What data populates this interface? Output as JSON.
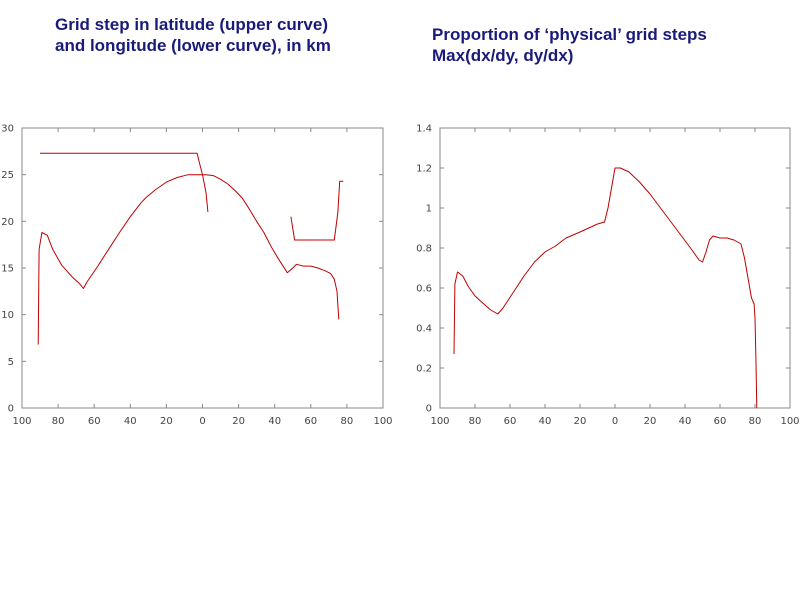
{
  "captions": {
    "left": {
      "line1": "Grid step in latitude (upper curve)",
      "line2": "and longitude (lower curve), in km"
    },
    "right": {
      "line1": "Proportion of ‘physical’ grid steps",
      "line2": "Max(dx/dy, dy/dx)"
    }
  },
  "colors": {
    "series": "#c00000",
    "frame": "#888888",
    "caption": "#1a1a7a"
  },
  "chart_data": [
    {
      "id": "left",
      "type": "line",
      "xlim": [
        -100,
        100
      ],
      "ylim": [
        0,
        30
      ],
      "xticks": [
        -100,
        -80,
        -60,
        -40,
        -20,
        0,
        20,
        40,
        60,
        80,
        100
      ],
      "xtick_labels": [
        "100",
        "80",
        "60",
        "40",
        "20",
        "0",
        "20",
        "40",
        "60",
        "80",
        "100"
      ],
      "yticks": [
        0,
        5,
        10,
        15,
        20,
        25,
        30
      ],
      "ytick_labels": [
        "0",
        "5",
        "10",
        "15",
        "20",
        "25",
        "30"
      ],
      "grid": false,
      "series": [
        {
          "segments": [
            [
              [
                -91,
                6.8
              ],
              [
                -90.5,
                17
              ],
              [
                -89,
                18.8
              ],
              [
                -86,
                18.5
              ],
              [
                -83,
                17
              ],
              [
                -78,
                15.3
              ],
              [
                -72,
                14
              ],
              [
                -68,
                13.3
              ],
              [
                -66,
                12.8
              ],
              [
                -64,
                13.5
              ],
              [
                -58,
                15.2
              ],
              [
                -52,
                17
              ],
              [
                -46,
                18.8
              ],
              [
                -40,
                20.5
              ],
              [
                -34,
                22
              ],
              [
                -31,
                22.6
              ],
              [
                -26,
                23.4
              ],
              [
                -20,
                24.2
              ],
              [
                -14,
                24.7
              ],
              [
                -8,
                25
              ],
              [
                -4,
                25
              ],
              [
                -2,
                25
              ],
              [
                0,
                25
              ],
              [
                2,
                25
              ],
              [
                6,
                24.9
              ],
              [
                10,
                24.5
              ],
              [
                14,
                24
              ],
              [
                18,
                23.3
              ],
              [
                22,
                22.5
              ],
              [
                26,
                21.3
              ],
              [
                30,
                20
              ],
              [
                34,
                18.8
              ],
              [
                38,
                17.3
              ],
              [
                42,
                16
              ],
              [
                47,
                14.5
              ],
              [
                50,
                15
              ],
              [
                52,
                15.4
              ],
              [
                56,
                15.2
              ],
              [
                60,
                15.2
              ],
              [
                64,
                15
              ],
              [
                68,
                14.7
              ],
              [
                71,
                14.4
              ],
              [
                73,
                13.8
              ],
              [
                74.5,
                12.5
              ],
              [
                75.5,
                9.5
              ]
            ]
          ]
        },
        {
          "segments": [
            [
              [
                -90,
                27.3
              ],
              [
                -85,
                27.3
              ],
              [
                -70,
                27.3
              ],
              [
                -50,
                27.3
              ],
              [
                -30,
                27.3
              ],
              [
                -10,
                27.3
              ],
              [
                -3,
                27.3
              ],
              [
                -2,
                26.5
              ],
              [
                0,
                25
              ],
              [
                2,
                23
              ],
              [
                3,
                21
              ]
            ],
            [
              [
                49,
                20.5
              ],
              [
                51,
                18
              ],
              [
                60,
                18
              ],
              [
                70,
                18
              ],
              [
                73,
                18
              ],
              [
                75,
                21
              ],
              [
                76,
                24.3
              ],
              [
                78,
                24.3
              ]
            ]
          ]
        }
      ]
    },
    {
      "id": "right",
      "type": "line",
      "xlim": [
        -100,
        100
      ],
      "ylim": [
        0,
        1.4
      ],
      "xticks": [
        -100,
        -80,
        -60,
        -40,
        -20,
        0,
        20,
        40,
        60,
        80,
        100
      ],
      "xtick_labels": [
        "100",
        "80",
        "60",
        "40",
        "20",
        "0",
        "20",
        "40",
        "60",
        "80",
        "100"
      ],
      "yticks": [
        0,
        0.2,
        0.4,
        0.6,
        0.8,
        1.0,
        1.2,
        1.4
      ],
      "ytick_labels": [
        "0",
        "0.2",
        "0.4",
        "0.6",
        "0.8",
        "1",
        "1.2",
        "1.4"
      ],
      "grid": false,
      "series": [
        {
          "segments": [
            [
              [
                -92,
                0.27
              ],
              [
                -91.5,
                0.62
              ],
              [
                -90,
                0.68
              ],
              [
                -87,
                0.66
              ],
              [
                -84,
                0.61
              ],
              [
                -80,
                0.56
              ],
              [
                -75,
                0.52
              ],
              [
                -71,
                0.49
              ],
              [
                -67,
                0.47
              ],
              [
                -64,
                0.5
              ],
              [
                -58,
                0.58
              ],
              [
                -52,
                0.66
              ],
              [
                -46,
                0.73
              ],
              [
                -40,
                0.78
              ],
              [
                -34,
                0.81
              ],
              [
                -28,
                0.85
              ],
              [
                -20,
                0.88
              ],
              [
                -10,
                0.92
              ],
              [
                -6,
                0.93
              ],
              [
                -4,
                1.0
              ],
              [
                -2,
                1.1
              ],
              [
                0,
                1.2
              ],
              [
                3,
                1.2
              ],
              [
                8,
                1.18
              ],
              [
                14,
                1.13
              ],
              [
                20,
                1.07
              ],
              [
                26,
                1.0
              ],
              [
                32,
                0.93
              ],
              [
                38,
                0.86
              ],
              [
                44,
                0.79
              ],
              [
                48,
                0.74
              ],
              [
                50,
                0.73
              ],
              [
                52,
                0.78
              ],
              [
                54,
                0.84
              ],
              [
                56,
                0.86
              ],
              [
                60,
                0.85
              ],
              [
                64,
                0.85
              ],
              [
                68,
                0.84
              ],
              [
                72,
                0.82
              ],
              [
                74,
                0.75
              ],
              [
                76,
                0.65
              ],
              [
                78,
                0.55
              ],
              [
                79.5,
                0.52
              ],
              [
                80,
                0.45
              ],
              [
                80.5,
                0.25
              ],
              [
                81,
                0.0
              ]
            ]
          ]
        }
      ]
    }
  ]
}
